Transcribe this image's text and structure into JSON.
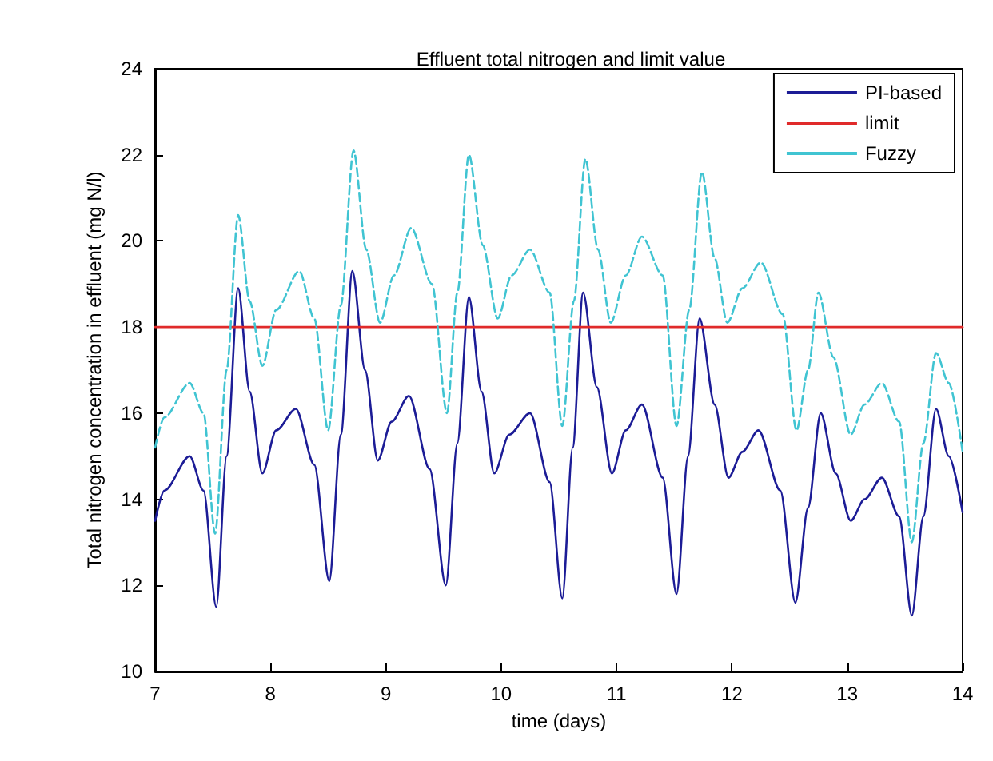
{
  "chart_data": {
    "type": "line",
    "title": "Effluent total nitrogen and limit value",
    "xlabel": "time (days)",
    "ylabel": "Total nitrogen concentration in effluent (mg N/l)",
    "xlim": [
      7,
      14
    ],
    "xticks": [
      7,
      8,
      9,
      10,
      11,
      12,
      13,
      14
    ],
    "ylim": [
      10,
      24
    ],
    "yticks": [
      10,
      12,
      14,
      16,
      18,
      20,
      22,
      24
    ],
    "grid": false,
    "legend": "top right",
    "marker": "none",
    "series": [
      {
        "name": "PI-based",
        "color": "#1c1c96",
        "line_style": "solid",
        "x": [
          7.0,
          7.08,
          7.3,
          7.42,
          7.53,
          7.62,
          7.72,
          7.82,
          7.93,
          8.05,
          8.22,
          8.38,
          8.51,
          8.61,
          8.71,
          8.82,
          8.93,
          9.05,
          9.2,
          9.38,
          9.52,
          9.62,
          9.72,
          9.83,
          9.94,
          10.07,
          10.25,
          10.42,
          10.53,
          10.62,
          10.71,
          10.83,
          10.96,
          11.08,
          11.22,
          11.4,
          11.52,
          11.62,
          11.72,
          11.85,
          11.97,
          12.09,
          12.23,
          12.42,
          12.55,
          12.66,
          12.77,
          12.9,
          13.03,
          13.15,
          13.3,
          13.45,
          13.56,
          13.66,
          13.77,
          13.88,
          14.0
        ],
        "values": [
          13.5,
          14.2,
          15.0,
          14.2,
          11.5,
          15.0,
          18.9,
          16.5,
          14.6,
          15.6,
          16.1,
          14.8,
          12.1,
          15.5,
          19.3,
          17.0,
          14.9,
          15.8,
          16.4,
          14.7,
          12.0,
          15.3,
          18.7,
          16.5,
          14.6,
          15.5,
          16.0,
          14.4,
          11.7,
          15.2,
          18.8,
          16.6,
          14.6,
          15.6,
          16.2,
          14.5,
          11.8,
          15.0,
          18.2,
          16.2,
          14.5,
          15.1,
          15.6,
          14.2,
          11.6,
          13.8,
          16.0,
          14.6,
          13.5,
          14.0,
          14.5,
          13.6,
          11.3,
          13.6,
          16.1,
          15.0,
          13.7
        ]
      },
      {
        "name": "limit",
        "color": "#e02a2a",
        "line_style": "solid",
        "x": [
          7,
          14
        ],
        "values": [
          18,
          18
        ]
      },
      {
        "name": "Fuzzy",
        "color": "#40c4d2",
        "line_style": "dashed",
        "x": [
          7.0,
          7.08,
          7.3,
          7.42,
          7.52,
          7.62,
          7.72,
          7.82,
          7.93,
          8.05,
          8.25,
          8.38,
          8.5,
          8.61,
          8.72,
          8.83,
          8.95,
          9.07,
          9.22,
          9.4,
          9.53,
          9.62,
          9.72,
          9.84,
          9.97,
          10.09,
          10.25,
          10.42,
          10.53,
          10.63,
          10.73,
          10.84,
          10.95,
          11.08,
          11.22,
          11.4,
          11.52,
          11.63,
          11.74,
          11.85,
          11.96,
          12.09,
          12.25,
          12.44,
          12.56,
          12.66,
          12.75,
          12.88,
          13.03,
          13.15,
          13.3,
          13.45,
          13.56,
          13.66,
          13.77,
          13.88,
          14.0
        ],
        "values": [
          15.2,
          15.9,
          16.7,
          16.0,
          13.2,
          17.0,
          20.6,
          18.6,
          17.1,
          18.4,
          19.3,
          18.2,
          15.6,
          18.5,
          22.1,
          19.8,
          18.1,
          19.2,
          20.3,
          19.0,
          16.0,
          18.8,
          22.0,
          19.9,
          18.2,
          19.2,
          19.8,
          18.8,
          15.7,
          18.6,
          21.9,
          19.8,
          18.1,
          19.2,
          20.1,
          19.2,
          15.7,
          18.4,
          21.6,
          19.6,
          18.1,
          18.9,
          19.5,
          18.3,
          15.6,
          17.0,
          18.8,
          17.3,
          15.5,
          16.2,
          16.7,
          15.8,
          13.0,
          15.3,
          17.4,
          16.7,
          15.1
        ]
      }
    ]
  }
}
